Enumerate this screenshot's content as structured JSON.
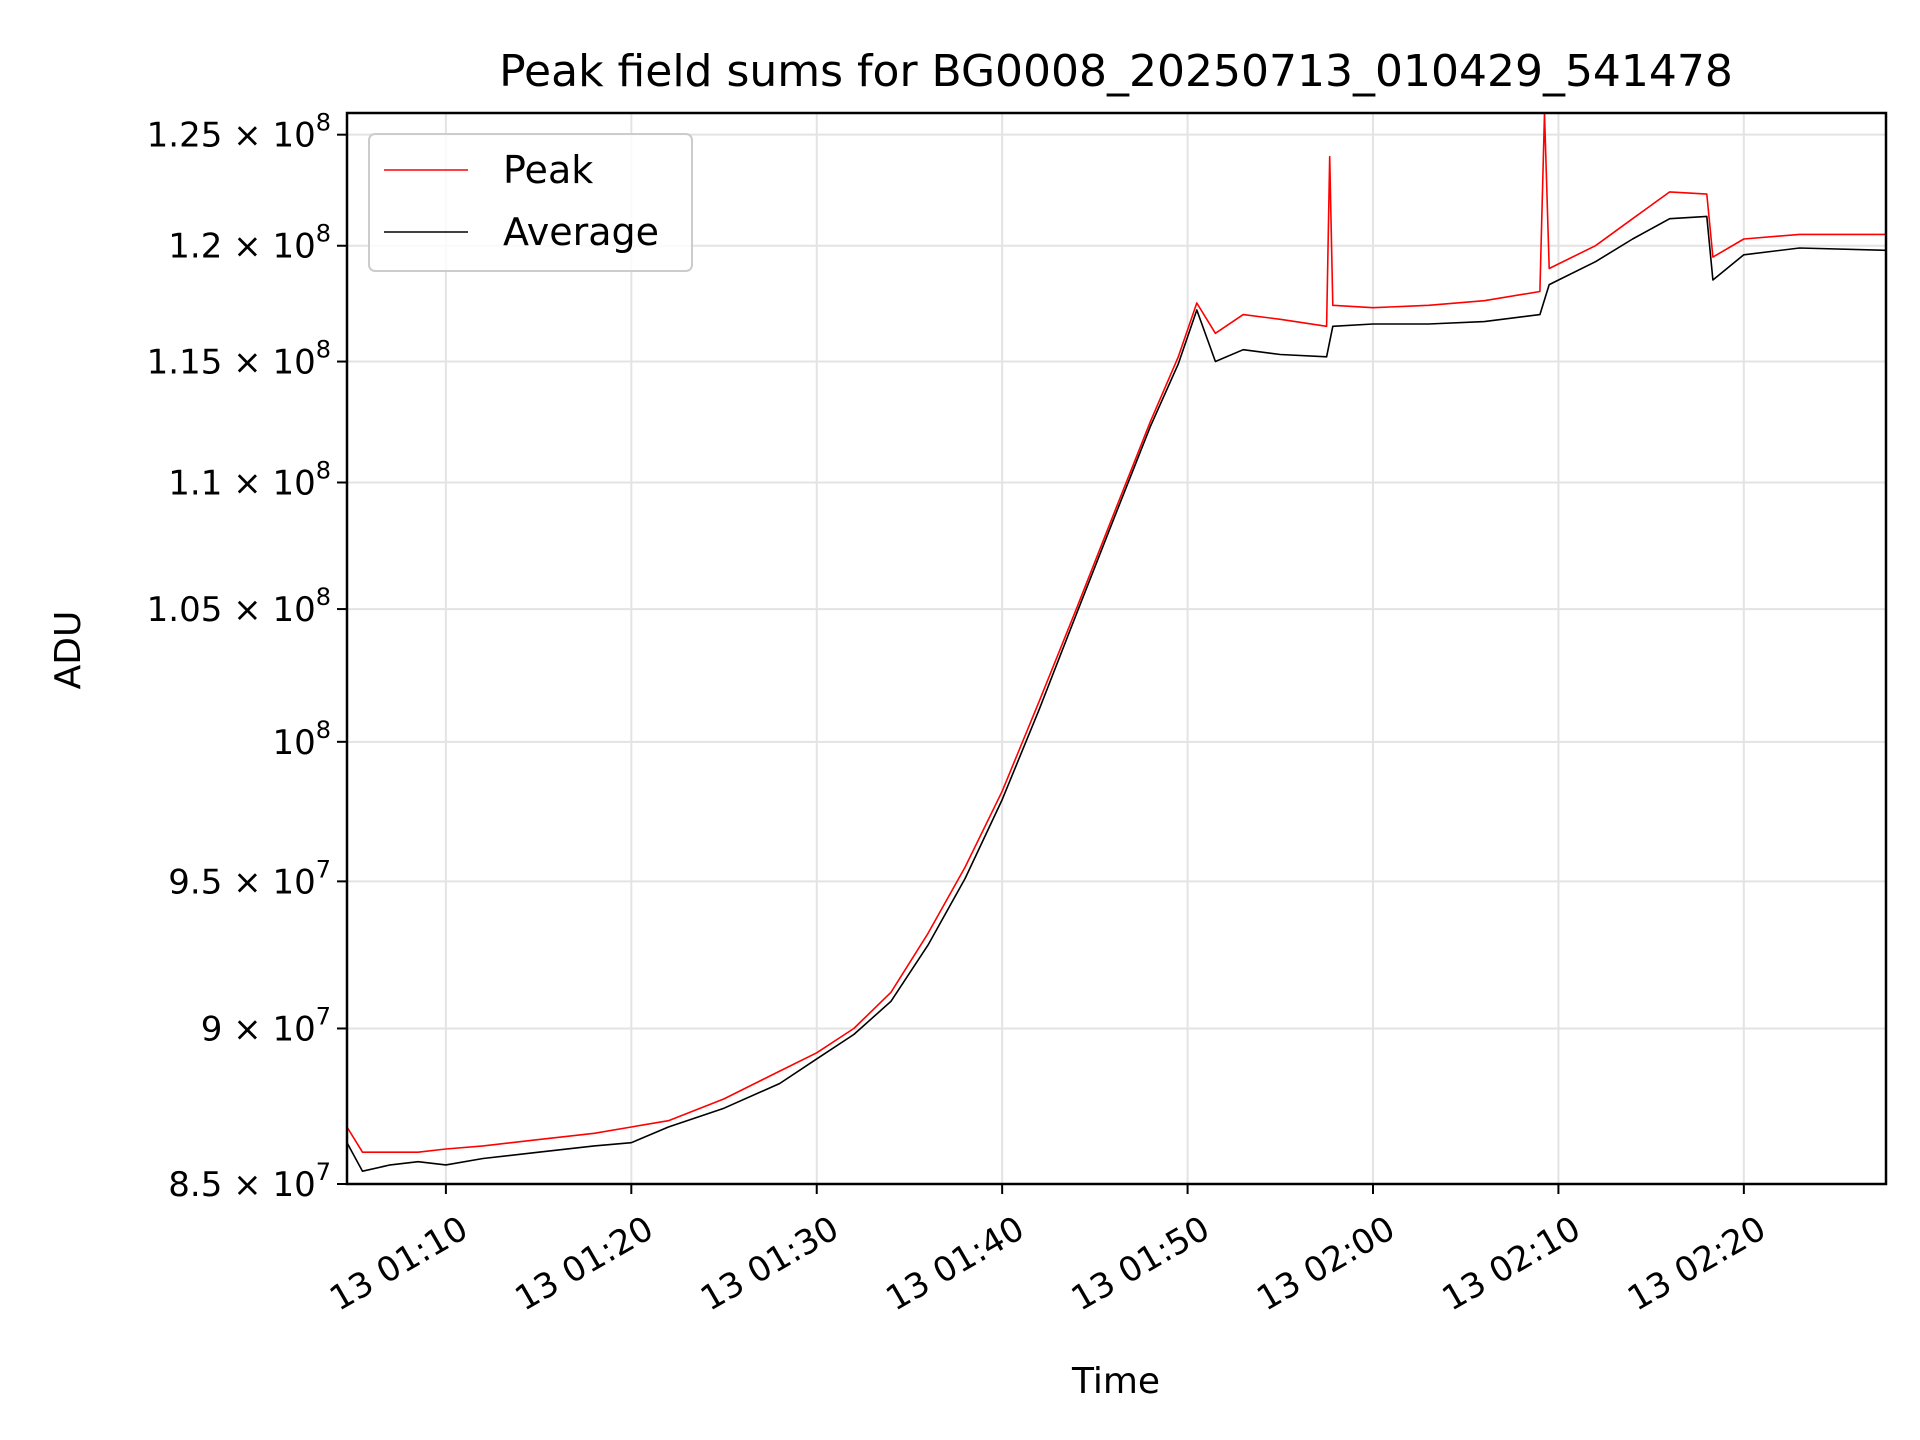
{
  "chart_data": {
    "type": "line",
    "title": "Peak field sums for BG0008_20250713_010429_541478",
    "xlabel": "Time",
    "ylabel": "ADU",
    "y_scale": "log",
    "grid": true,
    "legend_position": "top-left",
    "xlim": [
      "2025-07-13 01:04:40",
      "2025-07-13 02:27:40"
    ],
    "ylim": [
      85000000,
      126000000
    ],
    "x_ticks": [
      {
        "value": "2025-07-13 01:10",
        "label": "13 01:10"
      },
      {
        "value": "2025-07-13 01:20",
        "label": "13 01:20"
      },
      {
        "value": "2025-07-13 01:30",
        "label": "13 01:30"
      },
      {
        "value": "2025-07-13 01:40",
        "label": "13 01:40"
      },
      {
        "value": "2025-07-13 01:50",
        "label": "13 01:50"
      },
      {
        "value": "2025-07-13 02:00",
        "label": "13 02:00"
      },
      {
        "value": "2025-07-13 02:10",
        "label": "13 02:10"
      },
      {
        "value": "2025-07-13 02:20",
        "label": "13 02:20"
      }
    ],
    "y_ticks": [
      {
        "value": 85000000,
        "mant": "8.5",
        "exp": "7"
      },
      {
        "value": 90000000,
        "mant": "9",
        "exp": "7"
      },
      {
        "value": 95000000,
        "mant": "9.5",
        "exp": "7"
      },
      {
        "value": 100000000,
        "mant": "",
        "exp": "8"
      },
      {
        "value": 105000000,
        "mant": "1.05",
        "exp": "8"
      },
      {
        "value": 110000000,
        "mant": "1.1",
        "exp": "8"
      },
      {
        "value": 115000000,
        "mant": "1.15",
        "exp": "8"
      },
      {
        "value": 120000000,
        "mant": "1.2",
        "exp": "8"
      },
      {
        "value": 125000000,
        "mant": "1.25",
        "exp": "8"
      }
    ],
    "series": [
      {
        "name": "Peak",
        "color": "#ff0000",
        "points": [
          [
            "2025-07-13 01:04:40",
            86800000
          ],
          [
            "2025-07-13 01:05:30",
            86000000
          ],
          [
            "2025-07-13 01:07:00",
            86000000
          ],
          [
            "2025-07-13 01:08:30",
            86000000
          ],
          [
            "2025-07-13 01:10:00",
            86100000
          ],
          [
            "2025-07-13 01:12:00",
            86200000
          ],
          [
            "2025-07-13 01:15:00",
            86400000
          ],
          [
            "2025-07-13 01:18:00",
            86600000
          ],
          [
            "2025-07-13 01:20:00",
            86800000
          ],
          [
            "2025-07-13 01:22:00",
            87000000
          ],
          [
            "2025-07-13 01:25:00",
            87700000
          ],
          [
            "2025-07-13 01:28:00",
            88600000
          ],
          [
            "2025-07-13 01:30:00",
            89200000
          ],
          [
            "2025-07-13 01:32:00",
            90000000
          ],
          [
            "2025-07-13 01:34:00",
            91200000
          ],
          [
            "2025-07-13 01:36:00",
            93200000
          ],
          [
            "2025-07-13 01:38:00",
            95500000
          ],
          [
            "2025-07-13 01:40:00",
            98200000
          ],
          [
            "2025-07-13 01:42:00",
            101500000
          ],
          [
            "2025-07-13 01:44:00",
            105000000
          ],
          [
            "2025-07-13 01:46:00",
            108700000
          ],
          [
            "2025-07-13 01:48:00",
            112500000
          ],
          [
            "2025-07-13 01:49:30",
            115200000
          ],
          [
            "2025-07-13 01:50:30",
            117500000
          ],
          [
            "2025-07-13 01:51:30",
            116200000
          ],
          [
            "2025-07-13 01:53:00",
            117000000
          ],
          [
            "2025-07-13 01:55:00",
            116800000
          ],
          [
            "2025-07-13 01:57:30",
            116500000
          ],
          [
            "2025-07-13 01:57:40",
            124000000
          ],
          [
            "2025-07-13 01:57:50",
            117400000
          ],
          [
            "2025-07-13 02:00:00",
            117300000
          ],
          [
            "2025-07-13 02:03:00",
            117400000
          ],
          [
            "2025-07-13 02:06:00",
            117600000
          ],
          [
            "2025-07-13 02:09:00",
            118000000
          ],
          [
            "2025-07-13 02:09:15",
            126000000
          ],
          [
            "2025-07-13 02:09:30",
            119000000
          ],
          [
            "2025-07-13 02:12:00",
            120000000
          ],
          [
            "2025-07-13 02:14:00",
            121200000
          ],
          [
            "2025-07-13 02:16:00",
            122400000
          ],
          [
            "2025-07-13 02:18:00",
            122300000
          ],
          [
            "2025-07-13 02:18:20",
            119500000
          ],
          [
            "2025-07-13 02:20:00",
            120300000
          ],
          [
            "2025-07-13 02:23:00",
            120500000
          ],
          [
            "2025-07-13 02:27:40",
            120500000
          ]
        ]
      },
      {
        "name": "Average",
        "color": "#000000",
        "points": [
          [
            "2025-07-13 01:04:40",
            86300000
          ],
          [
            "2025-07-13 01:05:30",
            85400000
          ],
          [
            "2025-07-13 01:07:00",
            85600000
          ],
          [
            "2025-07-13 01:08:30",
            85700000
          ],
          [
            "2025-07-13 01:10:00",
            85600000
          ],
          [
            "2025-07-13 01:12:00",
            85800000
          ],
          [
            "2025-07-13 01:15:00",
            86000000
          ],
          [
            "2025-07-13 01:18:00",
            86200000
          ],
          [
            "2025-07-13 01:20:00",
            86300000
          ],
          [
            "2025-07-13 01:22:00",
            86800000
          ],
          [
            "2025-07-13 01:25:00",
            87400000
          ],
          [
            "2025-07-13 01:28:00",
            88200000
          ],
          [
            "2025-07-13 01:30:00",
            89000000
          ],
          [
            "2025-07-13 01:32:00",
            89800000
          ],
          [
            "2025-07-13 01:34:00",
            90900000
          ],
          [
            "2025-07-13 01:36:00",
            92800000
          ],
          [
            "2025-07-13 01:38:00",
            95100000
          ],
          [
            "2025-07-13 01:40:00",
            97900000
          ],
          [
            "2025-07-13 01:42:00",
            101200000
          ],
          [
            "2025-07-13 01:44:00",
            104800000
          ],
          [
            "2025-07-13 01:46:00",
            108500000
          ],
          [
            "2025-07-13 01:48:00",
            112300000
          ],
          [
            "2025-07-13 01:49:30",
            114900000
          ],
          [
            "2025-07-13 01:50:30",
            117200000
          ],
          [
            "2025-07-13 01:51:30",
            115000000
          ],
          [
            "2025-07-13 01:53:00",
            115500000
          ],
          [
            "2025-07-13 01:55:00",
            115300000
          ],
          [
            "2025-07-13 01:57:30",
            115200000
          ],
          [
            "2025-07-13 01:57:50",
            116500000
          ],
          [
            "2025-07-13 02:00:00",
            116600000
          ],
          [
            "2025-07-13 02:03:00",
            116600000
          ],
          [
            "2025-07-13 02:06:00",
            116700000
          ],
          [
            "2025-07-13 02:09:00",
            117000000
          ],
          [
            "2025-07-13 02:09:30",
            118300000
          ],
          [
            "2025-07-13 02:12:00",
            119300000
          ],
          [
            "2025-07-13 02:14:00",
            120300000
          ],
          [
            "2025-07-13 02:16:00",
            121200000
          ],
          [
            "2025-07-13 02:18:00",
            121300000
          ],
          [
            "2025-07-13 02:18:20",
            118500000
          ],
          [
            "2025-07-13 02:20:00",
            119600000
          ],
          [
            "2025-07-13 02:23:00",
            119900000
          ],
          [
            "2025-07-13 02:27:40",
            119800000
          ]
        ]
      }
    ],
    "legend": [
      {
        "label": "Peak",
        "color": "#ff0000"
      },
      {
        "label": "Average",
        "color": "#000000"
      }
    ]
  }
}
